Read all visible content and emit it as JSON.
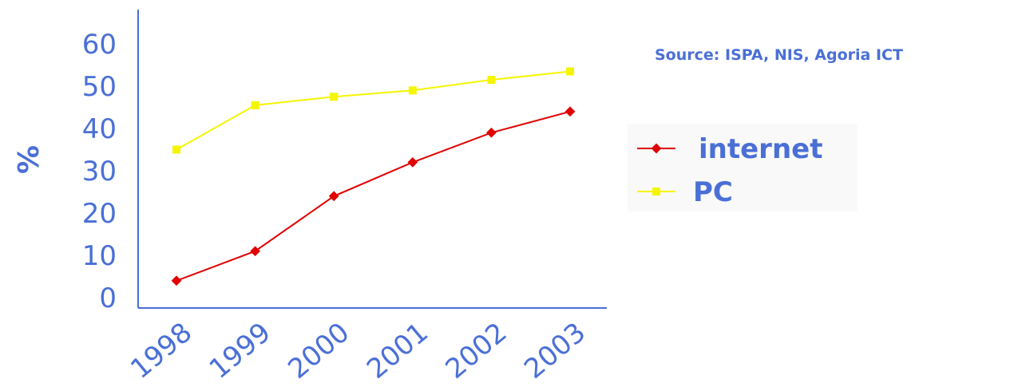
{
  "source_note": "Source: ISPA, NIS, Agoria ICT",
  "colors": {
    "text": "#4a6fd6",
    "axis": "#4a6fd6",
    "internet": "#e00000",
    "pc": "#f5f500",
    "legend_bg": "#f9f9f9"
  },
  "chart_data": {
    "type": "line",
    "ylabel": "%",
    "xlabel": "",
    "x": [
      "1998",
      "1999",
      "2000",
      "2001",
      "2002",
      "2003"
    ],
    "ylim": [
      0,
      60
    ],
    "yticks": [
      "0",
      "10",
      "20",
      "30",
      "40",
      "50",
      "60"
    ],
    "grid": false,
    "legend_position": "right",
    "series": [
      {
        "name": "internet",
        "marker": "diamond",
        "color": "#e00000",
        "values": [
          4,
          11,
          24,
          32,
          39,
          44
        ]
      },
      {
        "name": "PC",
        "marker": "square",
        "color": "#f5f500",
        "values": [
          35,
          45.5,
          47.5,
          49,
          51.5,
          53.5
        ]
      }
    ]
  }
}
